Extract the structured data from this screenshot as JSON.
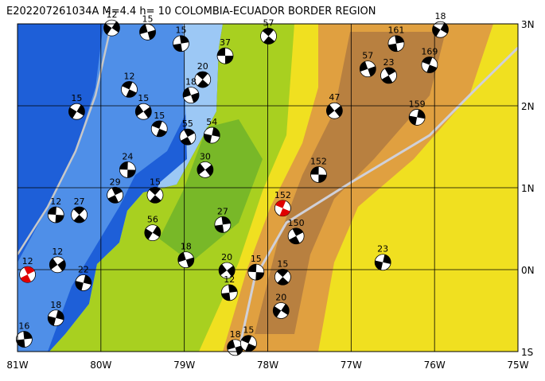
{
  "map": {
    "title": "E202207261034A M=4.4 h= 10 COLOMBIA-ECUADOR BORDER REGION",
    "xlim": [
      -81,
      -75
    ],
    "ylim": [
      -1,
      3
    ],
    "xticks": [
      {
        "value": -81,
        "label": "81W"
      },
      {
        "value": -80,
        "label": "80W"
      },
      {
        "value": -79,
        "label": "79W"
      },
      {
        "value": -78,
        "label": "78W"
      },
      {
        "value": -77,
        "label": "77W"
      },
      {
        "value": -76,
        "label": "76W"
      },
      {
        "value": -75,
        "label": "75W"
      }
    ],
    "yticks": [
      {
        "value": -1,
        "label": "1S"
      },
      {
        "value": 0,
        "label": "0N"
      },
      {
        "value": 1,
        "label": "1N"
      },
      {
        "value": 2,
        "label": "2N"
      },
      {
        "value": 3,
        "label": "3N"
      }
    ],
    "grid": true,
    "events": [
      {
        "lon": -78.51,
        "lat": 2.61,
        "depth": 37,
        "color": "#000000"
      },
      {
        "lon": -77.99,
        "lat": 2.85,
        "depth": 57,
        "color": "#000000"
      },
      {
        "lon": -76.46,
        "lat": 2.76,
        "depth": 161,
        "color": "#000000"
      },
      {
        "lon": -75.93,
        "lat": 2.93,
        "depth": 18,
        "color": "#000000"
      },
      {
        "lon": -76.8,
        "lat": 2.45,
        "depth": 57,
        "color": "#000000"
      },
      {
        "lon": -76.06,
        "lat": 2.5,
        "depth": 169,
        "color": "#000000"
      },
      {
        "lon": -76.55,
        "lat": 2.37,
        "depth": 23,
        "color": "#000000"
      },
      {
        "lon": -76.21,
        "lat": 1.86,
        "depth": 159,
        "color": "#000000"
      },
      {
        "lon": -77.2,
        "lat": 1.94,
        "depth": 47,
        "color": "#000000"
      },
      {
        "lon": -77.39,
        "lat": 1.16,
        "depth": 152,
        "color": "#000000"
      },
      {
        "lon": -78.78,
        "lat": 2.32,
        "depth": 20,
        "color": "#000000"
      },
      {
        "lon": -79.04,
        "lat": 2.76,
        "depth": 15,
        "color": "#000000"
      },
      {
        "lon": -80.29,
        "lat": 1.93,
        "depth": 15,
        "color": "#000000"
      },
      {
        "lon": -78.92,
        "lat": 2.13,
        "depth": 18,
        "color": "#000000"
      },
      {
        "lon": -79.3,
        "lat": 1.72,
        "depth": 15,
        "color": "#000000"
      },
      {
        "lon": -78.96,
        "lat": 1.62,
        "depth": 55,
        "color": "#000000"
      },
      {
        "lon": -78.67,
        "lat": 1.64,
        "depth": 54,
        "color": "#000000"
      },
      {
        "lon": -78.75,
        "lat": 1.22,
        "depth": 30,
        "color": "#000000"
      },
      {
        "lon": -79.68,
        "lat": 1.22,
        "depth": 24,
        "color": "#000000"
      },
      {
        "lon": -79.35,
        "lat": 0.91,
        "depth": 15,
        "color": "#000000"
      },
      {
        "lon": -78.54,
        "lat": 0.55,
        "depth": 27,
        "color": "#000000"
      },
      {
        "lon": -79.38,
        "lat": 0.45,
        "depth": 56,
        "color": "#000000"
      },
      {
        "lon": -78.98,
        "lat": 0.12,
        "depth": 18,
        "color": "#000000"
      },
      {
        "lon": -77.82,
        "lat": 0.75,
        "depth": 152,
        "color": "#e00000"
      },
      {
        "lon": -77.66,
        "lat": 0.41,
        "depth": 150,
        "color": "#000000"
      },
      {
        "lon": -76.62,
        "lat": 0.09,
        "depth": 23,
        "color": "#000000"
      },
      {
        "lon": -78.49,
        "lat": -0.01,
        "depth": 20,
        "color": "#000000"
      },
      {
        "lon": -78.14,
        "lat": -0.03,
        "depth": 15,
        "color": "#000000"
      },
      {
        "lon": -77.82,
        "lat": -0.09,
        "depth": 15,
        "color": "#000000"
      },
      {
        "lon": -78.46,
        "lat": -0.28,
        "depth": 12,
        "color": "#000000"
      },
      {
        "lon": -77.84,
        "lat": -0.5,
        "depth": 20,
        "color": "#000000"
      },
      {
        "lon": -78.39,
        "lat": -0.95,
        "depth": 18,
        "color": "#000000"
      },
      {
        "lon": -78.23,
        "lat": -0.9,
        "depth": 15,
        "color": "#000000"
      },
      {
        "lon": -80.88,
        "lat": -0.06,
        "depth": 12,
        "color": "#e00000"
      },
      {
        "lon": -80.21,
        "lat": -0.16,
        "depth": 22,
        "color": "#000000"
      },
      {
        "lon": -80.52,
        "lat": 0.06,
        "depth": 12,
        "color": "#000000"
      },
      {
        "lon": -80.54,
        "lat": 0.67,
        "depth": 12,
        "color": "#000000"
      },
      {
        "lon": -80.26,
        "lat": 0.67,
        "depth": 27,
        "color": "#000000"
      },
      {
        "lon": -80.92,
        "lat": -0.85,
        "depth": 16,
        "color": "#000000"
      },
      {
        "lon": -79.87,
        "lat": 2.95,
        "depth": 12,
        "color": "#000000"
      },
      {
        "lon": -79.44,
        "lat": 2.9,
        "depth": 15,
        "color": "#000000"
      },
      {
        "lon": -79.66,
        "lat": 2.2,
        "depth": 12,
        "color": "#000000"
      },
      {
        "lon": -79.83,
        "lat": 0.91,
        "depth": 29,
        "color": "#000000"
      },
      {
        "lon": -80.54,
        "lat": -0.59,
        "depth": 18,
        "color": "#000000"
      },
      {
        "lon": -79.49,
        "lat": 1.93,
        "depth": 15,
        "color": "#000000"
      }
    ]
  }
}
